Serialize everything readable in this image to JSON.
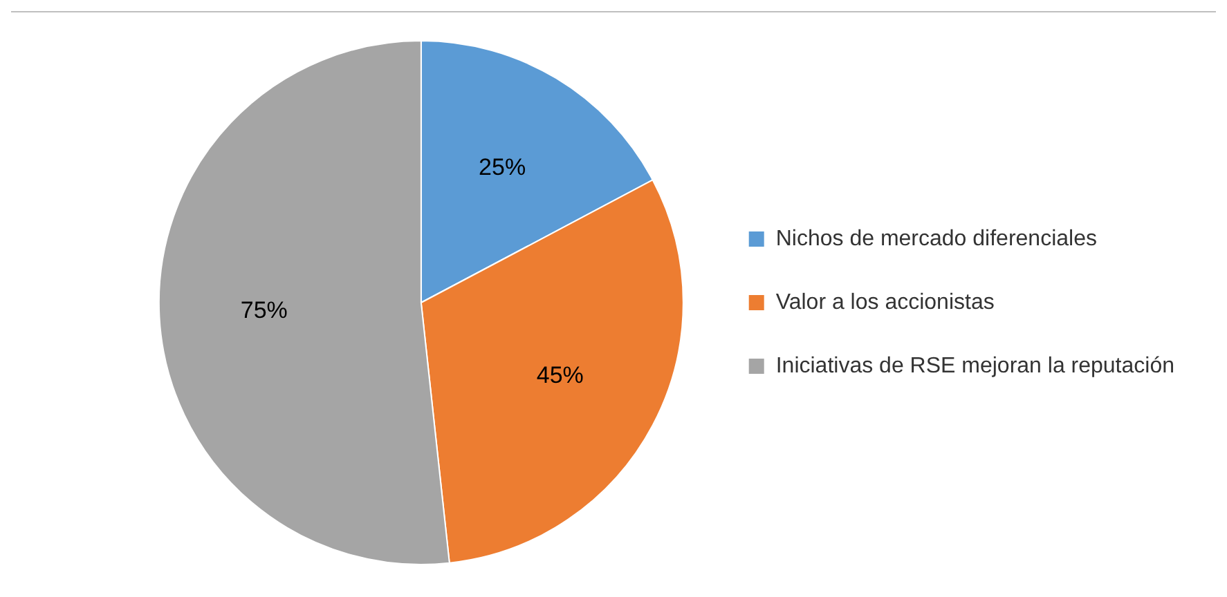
{
  "chart_data": {
    "type": "pie",
    "categories": [
      "Nichos de mercado diferenciales",
      "Valor a los accionistas",
      "Iniciativas de RSE mejoran la reputación"
    ],
    "values": [
      25,
      45,
      75
    ],
    "colors": [
      "#5b9bd5",
      "#ed7d31",
      "#a5a5a5"
    ],
    "value_labels": [
      "25%",
      "45%",
      "75%"
    ],
    "legend": "right"
  }
}
